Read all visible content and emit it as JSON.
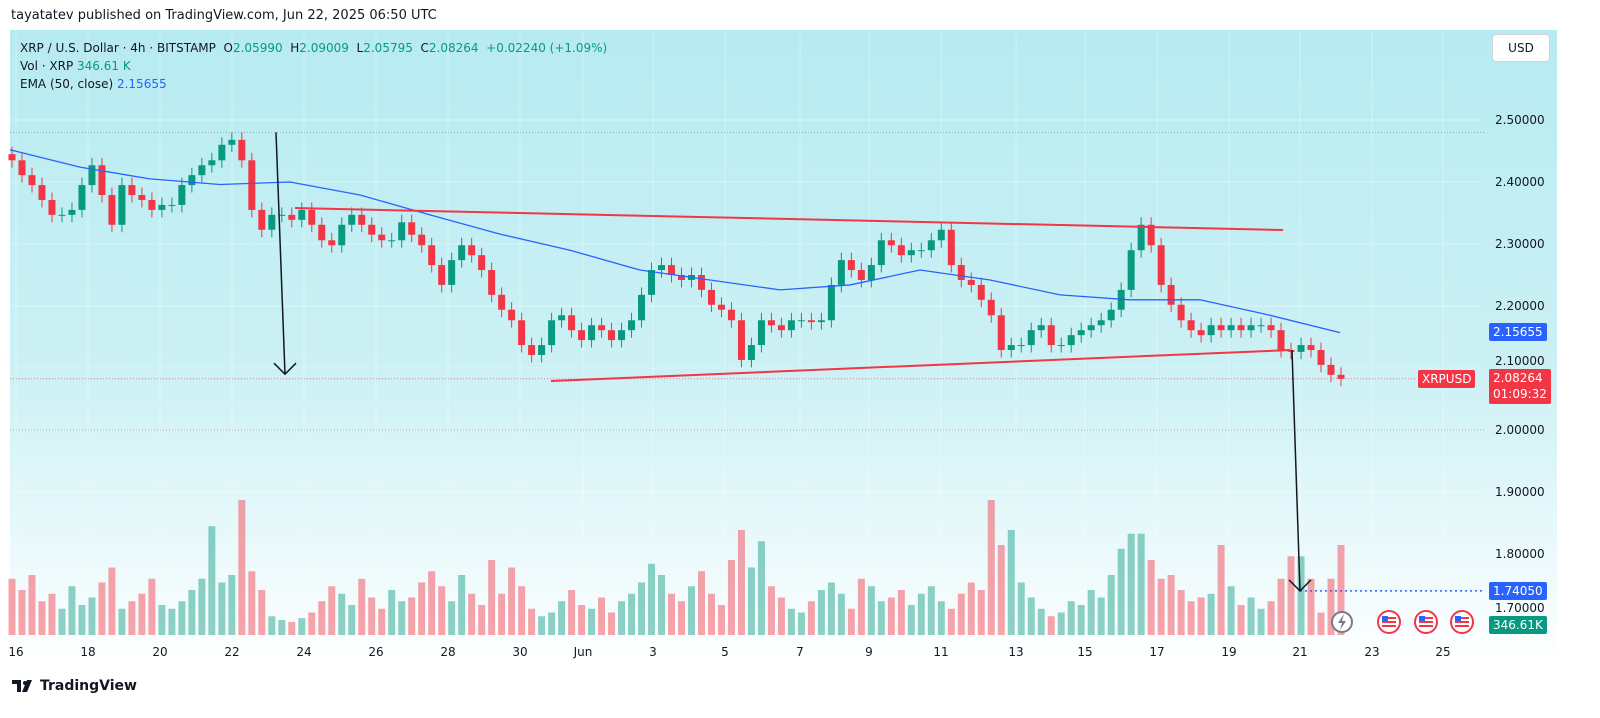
{
  "publisher": "tayatatev published on TradingView.com, Jun 22, 2025 06:50 UTC",
  "legend": {
    "symbol": "XRP / U.S. Dollar · 4h · BITSTAMP",
    "o_label": "O",
    "o": "2.05990",
    "h_label": "H",
    "h": "2.09009",
    "l_label": "L",
    "l": "2.05795",
    "c_label": "C",
    "c": "2.08264",
    "change": "+0.02240 (+1.09%)",
    "vol_label": "Vol · XRP",
    "vol": "346.61 K",
    "ema_label": "EMA (50, close)",
    "ema": "2.15655"
  },
  "currency_button": "USD",
  "tags": {
    "ema": "2.15655",
    "symbol": "XRPUSD",
    "price": "2.08264",
    "countdown": "01:09:32",
    "target": "1.74050",
    "volume": "346.61K"
  },
  "footer": {
    "logo_text": "TradingView"
  },
  "colors": {
    "up": "#089981",
    "down": "#f23645",
    "ema": "#2962ff",
    "trendline": "#f23645",
    "arrow": "#131722",
    "target": "#2962ff"
  },
  "chart_data": {
    "type": "candlestick",
    "interval": "4h",
    "yaxis_ticks": [
      "2.50000",
      "2.40000",
      "2.30000",
      "2.20000",
      "2.10000",
      "2.00000",
      "1.90000",
      "1.80000",
      "1.70000"
    ],
    "ylim": [
      1.685,
      2.565
    ],
    "xaxis_ticks": [
      "16",
      "18",
      "20",
      "22",
      "24",
      "26",
      "28",
      "30",
      "Jun",
      "3",
      "5",
      "7",
      "9",
      "11",
      "13",
      "15",
      "17",
      "19",
      "21",
      "23",
      "25"
    ],
    "closes": [
      2.435,
      2.411,
      2.395,
      2.371,
      2.347,
      2.347,
      2.355,
      2.395,
      2.427,
      2.379,
      2.331,
      2.395,
      2.379,
      2.371,
      2.355,
      2.363,
      2.363,
      2.395,
      2.411,
      2.427,
      2.435,
      2.46,
      2.468,
      2.435,
      2.355,
      2.323,
      2.347,
      2.347,
      2.339,
      2.355,
      2.331,
      2.306,
      2.298,
      2.331,
      2.347,
      2.331,
      2.315,
      2.306,
      2.306,
      2.335,
      2.315,
      2.298,
      2.266,
      2.234,
      2.274,
      2.298,
      2.282,
      2.258,
      2.218,
      2.194,
      2.177,
      2.137,
      2.121,
      2.137,
      2.177,
      2.185,
      2.161,
      2.145,
      2.169,
      2.161,
      2.145,
      2.161,
      2.177,
      2.218,
      2.258,
      2.266,
      2.25,
      2.242,
      2.25,
      2.226,
      2.202,
      2.194,
      2.177,
      2.113,
      2.137,
      2.177,
      2.169,
      2.161,
      2.177,
      2.177,
      2.174,
      2.177,
      2.234,
      2.274,
      2.258,
      2.242,
      2.266,
      2.306,
      2.298,
      2.282,
      2.29,
      2.29,
      2.306,
      2.323,
      2.266,
      2.242,
      2.234,
      2.21,
      2.185,
      2.129,
      2.137,
      2.137,
      2.161,
      2.169,
      2.137,
      2.137,
      2.153,
      2.161,
      2.169,
      2.177,
      2.194,
      2.226,
      2.29,
      2.331,
      2.298,
      2.234,
      2.202,
      2.177,
      2.161,
      2.153,
      2.169,
      2.161,
      2.169,
      2.161,
      2.169,
      2.169,
      2.161,
      2.129,
      2.126,
      2.137,
      2.129,
      2.105,
      2.089,
      2.08264
    ],
    "volumes_k": [
      1500,
      1200,
      1600,
      900,
      1100,
      700,
      1300,
      800,
      1000,
      1400,
      1800,
      700,
      900,
      1100,
      1500,
      800,
      700,
      900,
      1200,
      1500,
      2900,
      1400,
      1600,
      3600,
      1700,
      1200,
      500,
      400,
      350,
      450,
      600,
      900,
      1300,
      1100,
      800,
      1500,
      1000,
      700,
      1200,
      900,
      1000,
      1400,
      1700,
      1300,
      900,
      1600,
      1100,
      800,
      2000,
      1100,
      1800,
      1300,
      700,
      500,
      600,
      900,
      1200,
      800,
      700,
      1000,
      600,
      900,
      1100,
      1400,
      1900,
      1600,
      1100,
      900,
      1300,
      1700,
      1100,
      800,
      2000,
      2800,
      1800,
      2500,
      1300,
      1000,
      700,
      600,
      900,
      1200,
      1400,
      1100,
      700,
      1500,
      1300,
      900,
      1000,
      1200,
      800,
      1100,
      1300,
      900,
      700,
      1100,
      1400,
      1200,
      3600,
      2400,
      2800,
      1400,
      1000,
      700,
      500,
      600,
      900,
      800,
      1200,
      1000,
      1600,
      2300,
      2700,
      2700,
      2000,
      1500,
      1600,
      1200,
      900,
      1000,
      1100,
      2400,
      1300,
      800,
      1000,
      700,
      900,
      1500,
      2100,
      2100,
      1500,
      600,
      1500,
      2400,
      3600,
      1000,
      347
    ],
    "ema50": [
      2.452,
      2.424,
      2.405,
      2.396,
      2.4,
      2.379,
      2.347,
      2.316,
      2.29,
      2.258,
      2.242,
      2.226,
      2.234,
      2.258,
      2.242,
      2.218,
      2.21,
      2.21,
      2.185,
      2.157
    ],
    "trendlines": [
      {
        "from_date": "May 24",
        "from": 2.358,
        "to_date": "Jun 20",
        "to": 2.3226
      },
      {
        "from_date": "May 31",
        "from": 2.079,
        "to_date": "Jun 21",
        "to": 2.129
      }
    ],
    "arrows": [
      {
        "from": 2.48,
        "to": 2.09
      },
      {
        "from": 2.129,
        "to": 1.7405
      }
    ],
    "levels": {
      "high": 2.48,
      "last": 2.08264,
      "support": 2.0,
      "target": 1.7405
    }
  }
}
